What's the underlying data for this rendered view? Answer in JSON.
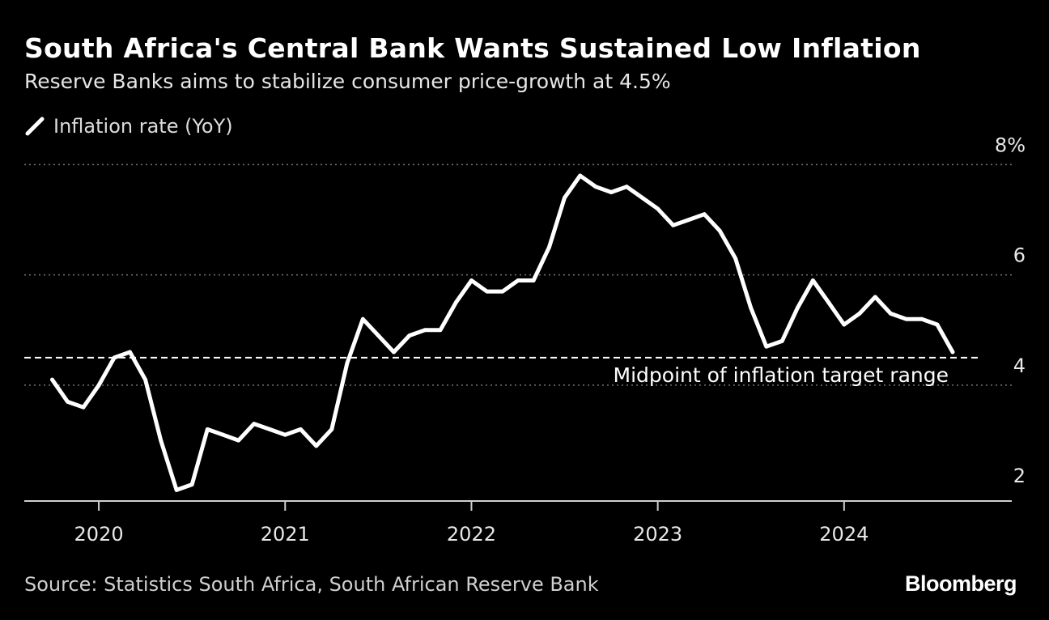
{
  "header": {
    "title": "South Africa's Central Bank Wants Sustained Low Inflation",
    "subtitle": "Reserve Banks aims to stabilize consumer price-growth at 4.5%"
  },
  "legend": {
    "label": "Inflation rate (YoY)"
  },
  "footer": {
    "source": "Source: Statistics South Africa, South African Reserve Bank",
    "brand": "Bloomberg"
  },
  "colors": {
    "background": "#000000",
    "line": "#ffffff",
    "grid": "#777777"
  },
  "chart_data": {
    "type": "line",
    "title": "South Africa's Central Bank Wants Sustained Low Inflation",
    "subtitle": "Reserve Banks aims to stabilize consumer price-growth at 4.5%",
    "xlabel": "",
    "ylabel": "",
    "ylim": [
      1.9,
      8.05
    ],
    "xlim": [
      2019.6,
      2024.9
    ],
    "grid": true,
    "legend_position": "top-left",
    "y_ticks": [
      {
        "value": 8,
        "label": "8%"
      },
      {
        "value": 6,
        "label": "6"
      },
      {
        "value": 4,
        "label": "4"
      },
      {
        "value": 2,
        "label": "2"
      }
    ],
    "x_ticks": [
      {
        "value": 2020,
        "label": "2020"
      },
      {
        "value": 2021,
        "label": "2021"
      },
      {
        "value": 2022,
        "label": "2022"
      },
      {
        "value": 2023,
        "label": "2023"
      },
      {
        "value": 2024,
        "label": "2024"
      }
    ],
    "reference_line": {
      "value": 4.5,
      "label": "Midpoint of inflation target range"
    },
    "series": [
      {
        "name": "Inflation rate (YoY)",
        "x": [
          2019.75,
          2019.833,
          2019.917,
          2020.0,
          2020.083,
          2020.167,
          2020.25,
          2020.333,
          2020.417,
          2020.5,
          2020.583,
          2020.667,
          2020.75,
          2020.833,
          2020.917,
          2021.0,
          2021.083,
          2021.167,
          2021.25,
          2021.333,
          2021.417,
          2021.5,
          2021.583,
          2021.667,
          2021.75,
          2021.833,
          2021.917,
          2022.0,
          2022.083,
          2022.167,
          2022.25,
          2022.333,
          2022.417,
          2022.5,
          2022.583,
          2022.667,
          2022.75,
          2022.833,
          2022.917,
          2023.0,
          2023.083,
          2023.167,
          2023.25,
          2023.333,
          2023.417,
          2023.5,
          2023.583,
          2023.667,
          2023.75,
          2023.833,
          2023.917,
          2024.0,
          2024.083,
          2024.167,
          2024.25,
          2024.333,
          2024.417,
          2024.5,
          2024.583
        ],
        "values": [
          4.1,
          3.7,
          3.6,
          4.0,
          4.5,
          4.6,
          4.1,
          3.0,
          2.1,
          2.2,
          3.2,
          3.1,
          3.0,
          3.3,
          3.2,
          3.1,
          3.2,
          2.9,
          3.2,
          4.4,
          5.2,
          4.9,
          4.6,
          4.9,
          5.0,
          5.0,
          5.5,
          5.9,
          5.7,
          5.7,
          5.9,
          5.9,
          6.5,
          7.4,
          7.8,
          7.6,
          7.5,
          7.6,
          7.4,
          7.2,
          6.9,
          7.0,
          7.1,
          6.8,
          6.3,
          5.4,
          4.7,
          4.8,
          5.4,
          5.9,
          5.5,
          5.1,
          5.3,
          5.6,
          5.3,
          5.2,
          5.2,
          5.1,
          4.6
        ]
      }
    ]
  }
}
